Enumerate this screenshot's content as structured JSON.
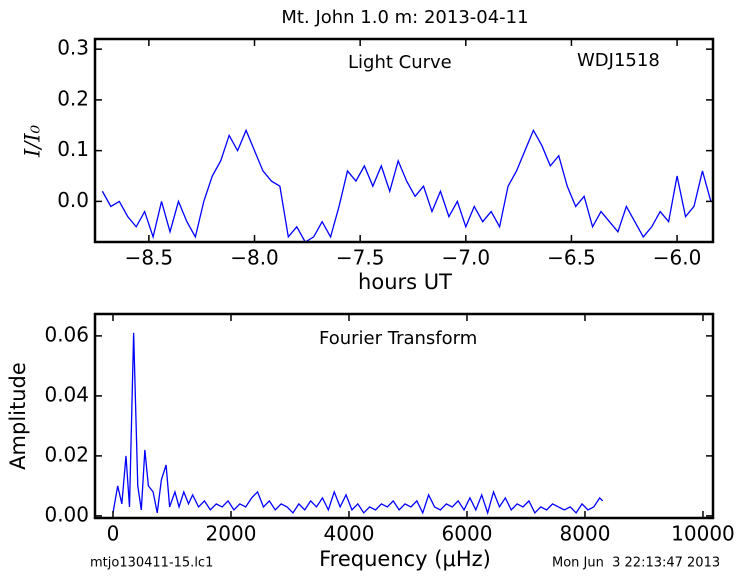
{
  "title": "Mt. John 1.0 m:  2013-04-11",
  "footer_left": "mtjo130411-15.lc1",
  "footer_right": "Mon Jun  3 22:13:47 2013",
  "chart_data": [
    {
      "type": "line",
      "annotations": [
        "Light Curve",
        "WDJ1518"
      ],
      "xlabel": "hours UT",
      "ylabel": "I/I₀",
      "color": "#0000ff",
      "x": [
        -8.72,
        -8.68,
        -8.64,
        -8.6,
        -8.56,
        -8.52,
        -8.48,
        -8.44,
        -8.4,
        -8.36,
        -8.32,
        -8.28,
        -8.24,
        -8.2,
        -8.16,
        -8.12,
        -8.08,
        -8.04,
        -8.0,
        -7.96,
        -7.92,
        -7.88,
        -7.84,
        -7.8,
        -7.76,
        -7.72,
        -7.68,
        -7.64,
        -7.6,
        -7.56,
        -7.52,
        -7.48,
        -7.44,
        -7.4,
        -7.36,
        -7.32,
        -7.28,
        -7.24,
        -7.2,
        -7.16,
        -7.12,
        -7.08,
        -7.04,
        -7.0,
        -6.96,
        -6.92,
        -6.88,
        -6.84,
        -6.8,
        -6.76,
        -6.72,
        -6.68,
        -6.64,
        -6.6,
        -6.56,
        -6.52,
        -6.48,
        -6.44,
        -6.4,
        -6.36,
        -6.32,
        -6.28,
        -6.24,
        -6.2,
        -6.16,
        -6.12,
        -6.08,
        -6.04,
        -6.0,
        -5.96,
        -5.92,
        -5.88,
        -5.84
      ],
      "values": [
        0.02,
        -0.01,
        0.0,
        -0.03,
        -0.05,
        -0.02,
        -0.07,
        0.0,
        -0.06,
        0.0,
        -0.04,
        -0.07,
        0.0,
        0.05,
        0.08,
        0.13,
        0.1,
        0.14,
        0.1,
        0.06,
        0.04,
        0.03,
        -0.07,
        -0.05,
        -0.08,
        -0.07,
        -0.04,
        -0.07,
        -0.01,
        0.06,
        0.04,
        0.07,
        0.03,
        0.07,
        0.02,
        0.08,
        0.04,
        0.01,
        0.03,
        -0.02,
        0.02,
        -0.03,
        0.0,
        -0.05,
        -0.01,
        -0.04,
        -0.02,
        -0.05,
        0.03,
        0.06,
        0.1,
        0.14,
        0.11,
        0.07,
        0.09,
        0.03,
        -0.01,
        0.01,
        -0.05,
        -0.02,
        -0.04,
        -0.06,
        -0.01,
        -0.04,
        -0.07,
        -0.05,
        -0.02,
        -0.04,
        0.05,
        -0.03,
        -0.01,
        0.06,
        0.0
      ],
      "xlim": [
        -8.755,
        -5.83
      ],
      "ylim": [
        -0.08,
        0.32
      ],
      "xticks": [
        {
          "value": -8.5,
          "label": "−8.5"
        },
        {
          "value": -8.0,
          "label": "−8.0"
        },
        {
          "value": -7.5,
          "label": "−7.5"
        },
        {
          "value": -7.0,
          "label": "−7.0"
        },
        {
          "value": -6.5,
          "label": "−6.5"
        },
        {
          "value": -6.0,
          "label": "−6.0"
        }
      ],
      "yticks": [
        {
          "value": 0,
          "label": "0.0"
        },
        {
          "value": 0.1,
          "label": "0.1"
        },
        {
          "value": 0.2,
          "label": "0.2"
        },
        {
          "value": 0.3,
          "label": "0.3"
        }
      ]
    },
    {
      "type": "line",
      "annotations": [
        "Fourier Transform"
      ],
      "xlabel": "Frequency (μHz)",
      "ylabel": "Amplitude",
      "color": "#0000ff",
      "x": [
        0,
        80,
        150,
        220,
        280,
        350,
        420,
        480,
        540,
        600,
        680,
        750,
        820,
        900,
        960,
        1050,
        1120,
        1200,
        1280,
        1350,
        1450,
        1550,
        1650,
        1750,
        1850,
        1950,
        2050,
        2150,
        2250,
        2350,
        2450,
        2550,
        2650,
        2750,
        2850,
        2950,
        3050,
        3150,
        3250,
        3350,
        3450,
        3550,
        3650,
        3750,
        3850,
        3950,
        4050,
        4150,
        4250,
        4350,
        4450,
        4550,
        4650,
        4750,
        4850,
        4950,
        5050,
        5150,
        5250,
        5350,
        5450,
        5550,
        5650,
        5750,
        5850,
        5950,
        6050,
        6150,
        6250,
        6350,
        6450,
        6550,
        6650,
        6750,
        6850,
        6950,
        7050,
        7150,
        7250,
        7350,
        7450,
        7550,
        7650,
        7750,
        7850,
        7950,
        8050,
        8150,
        8250,
        8300
      ],
      "values": [
        0.001,
        0.01,
        0.004,
        0.02,
        0.003,
        0.061,
        0.01,
        0.002,
        0.022,
        0.01,
        0.008,
        0.001,
        0.012,
        0.017,
        0.003,
        0.008,
        0.003,
        0.008,
        0.004,
        0.007,
        0.003,
        0.005,
        0.002,
        0.004,
        0.003,
        0.005,
        0.002,
        0.004,
        0.003,
        0.006,
        0.008,
        0.003,
        0.005,
        0.002,
        0.004,
        0.003,
        0.001,
        0.004,
        0.002,
        0.005,
        0.003,
        0.006,
        0.002,
        0.008,
        0.003,
        0.007,
        0.002,
        0.004,
        0.001,
        0.003,
        0.002,
        0.004,
        0.003,
        0.005,
        0.002,
        0.004,
        0.003,
        0.005,
        0.001,
        0.007,
        0.003,
        0.002,
        0.004,
        0.003,
        0.005,
        0.002,
        0.006,
        0.002,
        0.007,
        0.001,
        0.008,
        0.003,
        0.006,
        0.002,
        0.004,
        0.003,
        0.005,
        0.001,
        0.003,
        0.002,
        0.004,
        0.003,
        0.002,
        0.003,
        0.001,
        0.004,
        0.002,
        0.003,
        0.006,
        0.005
      ],
      "xlim": [
        -305,
        10170
      ],
      "ylim": [
        -0.0007,
        0.0673
      ],
      "xticks": [
        0,
        2000,
        4000,
        6000,
        8000,
        10000
      ],
      "yticks": [
        {
          "value": 0,
          "label": "0.00"
        },
        {
          "value": 0.02,
          "label": "0.02"
        },
        {
          "value": 0.04,
          "label": "0.04"
        },
        {
          "value": 0.06,
          "label": "0.06"
        }
      ]
    }
  ]
}
